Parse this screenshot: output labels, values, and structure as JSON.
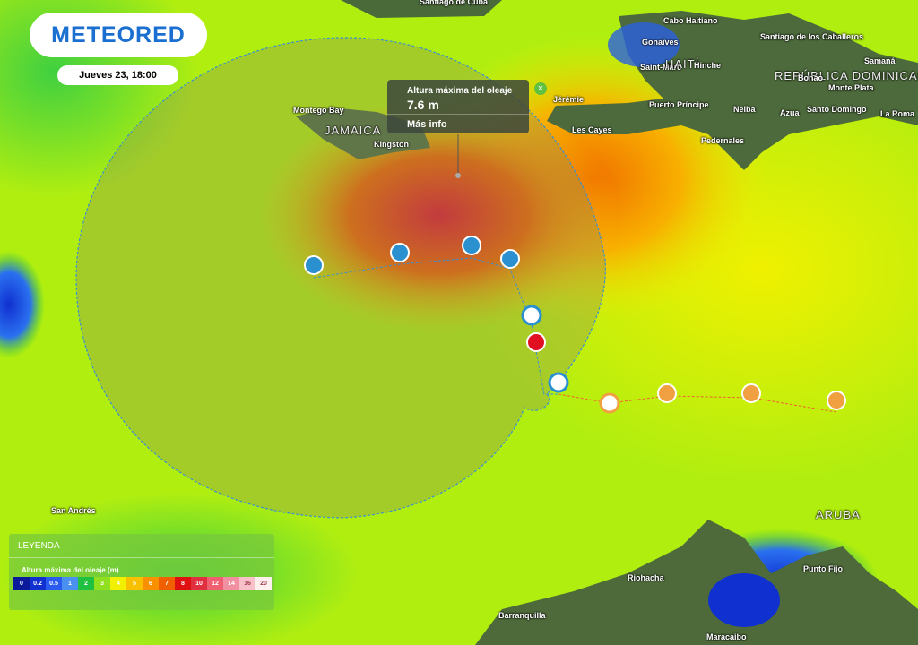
{
  "header": {
    "logo": "METEORED",
    "datetime": "Jueves 23, 18:00"
  },
  "popup": {
    "title": "Altura máxima del oleaje",
    "value": "7.6 m",
    "link": "Más info"
  },
  "places": [
    "Santiago de Cuba",
    "Cabo Haitiano",
    "Gonaïves",
    "Saint-Marc",
    "HAITÍ",
    "Hinche",
    "Santiago de los Caballeros",
    "REPÚBLICA DOMINICANA",
    "Samaná",
    "Bonao",
    "Monte Plata",
    "Jérémie",
    "Puerto Príncipe",
    "Neiba",
    "Azua",
    "Santo Domingo",
    "La Roma",
    "Les Cayes",
    "Pedernales",
    "Montego Bay",
    "JAMAICA",
    "Kingston",
    "San Andrés",
    "ARUBA",
    "Punto Fijo",
    "Riohacha",
    "Barranquilla",
    "Maracaibo"
  ],
  "legend": {
    "title": "LEYENDA",
    "subtitle": "Altura máxima del oleaje (m)",
    "scale": [
      {
        "label": "0",
        "color": "#0a1a9a"
      },
      {
        "label": "0.2",
        "color": "#1030d0"
      },
      {
        "label": "0.5",
        "color": "#2a5cf0"
      },
      {
        "label": "1",
        "color": "#4a90f0"
      },
      {
        "label": "2",
        "color": "#20c040"
      },
      {
        "label": "3",
        "color": "#90e020"
      },
      {
        "label": "4",
        "color": "#f0f000"
      },
      {
        "label": "5",
        "color": "#f8c000"
      },
      {
        "label": "6",
        "color": "#f89000"
      },
      {
        "label": "7",
        "color": "#f06000"
      },
      {
        "label": "8",
        "color": "#e01010"
      },
      {
        "label": "10",
        "color": "#e03040"
      },
      {
        "label": "12",
        "color": "#f06070"
      },
      {
        "label": "14",
        "color": "#f090a0"
      },
      {
        "label": "16",
        "color": "#f8c0c8"
      },
      {
        "label": "20",
        "color": "#fff0f0"
      }
    ]
  }
}
